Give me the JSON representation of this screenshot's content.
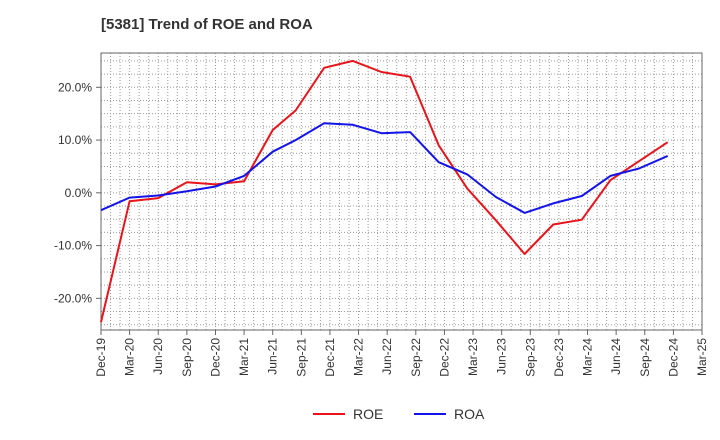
{
  "chart_data": {
    "type": "line",
    "title": "[5381]  Trend of ROE and ROA",
    "categories": [
      "Dec-19",
      "Mar-20",
      "Jun-20",
      "Sep-20",
      "Dec-20",
      "Mar-21",
      "Jun-21",
      "Sep-21",
      "Dec-21",
      "Mar-22",
      "Jun-22",
      "Sep-22",
      "Dec-22",
      "Mar-23",
      "Jun-23",
      "Sep-23",
      "Dec-23",
      "Mar-24",
      "Jun-24",
      "Sep-24",
      "Dec-24",
      "Mar-25"
    ],
    "y_ticks": [
      "20.0%",
      "10.0%",
      "0.0%",
      "-10.0%",
      "-20.0%"
    ],
    "y_tick_values": [
      20,
      10,
      0,
      -10,
      -20
    ],
    "ylim": [
      -26,
      26.5
    ],
    "grid": true,
    "legend_position": "bottom-center",
    "series": [
      {
        "name": "ROE",
        "color": "#e8141c",
        "points": [
          [
            0,
            -24.5
          ],
          [
            1,
            -1.6
          ],
          [
            2,
            -1.0
          ],
          [
            3,
            2.0
          ],
          [
            4,
            1.6
          ],
          [
            5,
            2.2
          ],
          [
            6,
            11.9
          ],
          [
            6.8,
            15.6
          ],
          [
            7.8,
            23.7
          ],
          [
            8.8,
            25.0
          ],
          [
            9.8,
            22.9
          ],
          [
            10.8,
            22.0
          ],
          [
            11.8,
            9.0
          ],
          [
            12.8,
            0.8
          ],
          [
            13.8,
            -5.2
          ],
          [
            14.8,
            -11.6
          ],
          [
            15.8,
            -6.0
          ],
          [
            16.8,
            -5.1
          ],
          [
            17.8,
            2.4
          ],
          [
            18.8,
            6.0
          ],
          [
            19.8,
            9.6
          ]
        ]
      },
      {
        "name": "ROA",
        "color": "#1414e8",
        "points": [
          [
            0,
            -3.3
          ],
          [
            1,
            -0.9
          ],
          [
            2,
            -0.5
          ],
          [
            3,
            0.3
          ],
          [
            4,
            1.2
          ],
          [
            5,
            3.2
          ],
          [
            6,
            7.8
          ],
          [
            6.8,
            10.0
          ],
          [
            7.8,
            13.2
          ],
          [
            8.8,
            12.9
          ],
          [
            9.8,
            11.3
          ],
          [
            10.8,
            11.5
          ],
          [
            11.8,
            5.8
          ],
          [
            12.8,
            3.5
          ],
          [
            13.8,
            -0.8
          ],
          [
            14.8,
            -3.8
          ],
          [
            15.8,
            -2.0
          ],
          [
            16.8,
            -0.6
          ],
          [
            17.8,
            3.2
          ],
          [
            18.8,
            4.6
          ],
          [
            19.8,
            7.0
          ]
        ]
      }
    ]
  }
}
